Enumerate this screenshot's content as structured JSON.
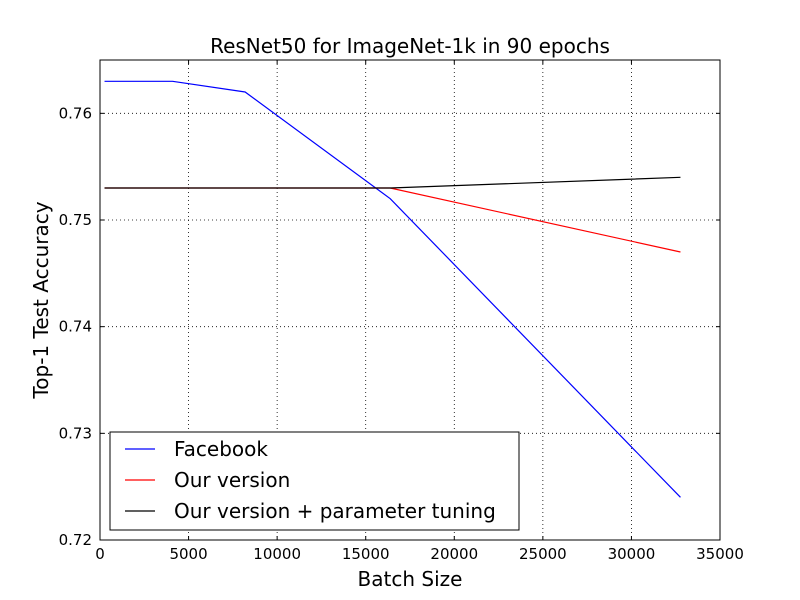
{
  "chart_data": {
    "type": "line",
    "title": "ResNet50 for ImageNet-1k in 90 epochs",
    "xlabel": "Batch Size",
    "ylabel": "Top-1 Test Accuracy",
    "xlim": [
      0,
      35000
    ],
    "ylim": [
      0.72,
      0.765
    ],
    "xticks": [
      0,
      5000,
      10000,
      15000,
      20000,
      25000,
      30000,
      35000
    ],
    "xtick_labels": [
      "0",
      "5000",
      "10000",
      "15000",
      "20000",
      "25000",
      "30000",
      "35000"
    ],
    "yticks": [
      0.72,
      0.73,
      0.74,
      0.75,
      0.76
    ],
    "ytick_labels": [
      "0.72",
      "0.73",
      "0.74",
      "0.75",
      "0.76"
    ],
    "grid": true,
    "grid_style": "dotted",
    "legend_position": "lower-left",
    "series": [
      {
        "name": "Facebook",
        "color": "#0000ff",
        "x": [
          256,
          4096,
          8192,
          16384,
          32768
        ],
        "y": [
          0.763,
          0.763,
          0.762,
          0.752,
          0.724
        ]
      },
      {
        "name": "Our version",
        "color": "#ff0000",
        "x": [
          256,
          16384,
          32768
        ],
        "y": [
          0.753,
          0.753,
          0.747
        ]
      },
      {
        "name": "Our version + parameter tuning",
        "color": "#000000",
        "x": [
          256,
          16384,
          32768
        ],
        "y": [
          0.753,
          0.753,
          0.754
        ]
      }
    ]
  }
}
